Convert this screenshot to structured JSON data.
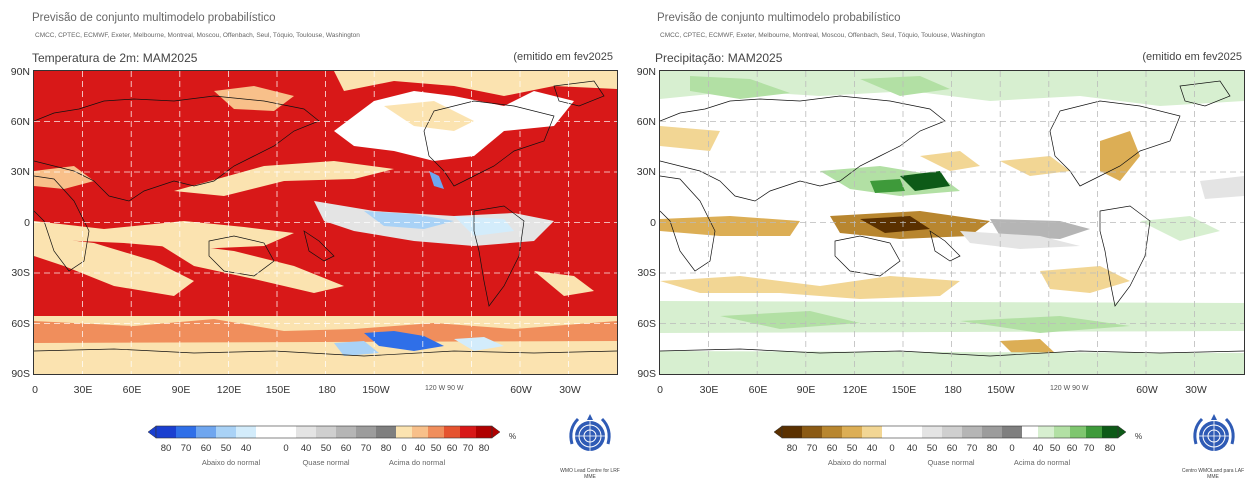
{
  "panels": [
    {
      "suptitle": "Previsão de conjunto multimodelo probabilístico",
      "centers": "CMCC, CPTEC, ECMWF, Exeter, Melbourne, Montreal, Moscou, Offenbach, Seul, Tóquio, Toulouse, Washington",
      "forecast_title": "Temperatura de 2m: MAM2025",
      "issued": "(emitido em fev2025",
      "lat_labels": [
        "90N",
        "60N",
        "30N",
        "0",
        "30S",
        "60S",
        "90S"
      ],
      "lon_labels": [
        "0",
        "30E",
        "60E",
        "90E",
        "120E",
        "150E",
        "180",
        "150W",
        "60W",
        "30W"
      ],
      "lon_inset": "120 W 90 W",
      "legend_ticks": [
        "80",
        "70",
        "60",
        "50",
        "40",
        "",
        "0",
        "40",
        "50",
        "60",
        "70",
        "80",
        "0",
        "40",
        "50",
        "60",
        "70",
        "80"
      ],
      "legend_unit": "%",
      "categories": [
        "Abaixo do normal",
        "Quase normal",
        "Acima do normal"
      ],
      "logo_text": "WMO Lead Centre for LRF MME",
      "colors": {
        "below": [
          "#1a3fd0",
          "#2f6fe8",
          "#6fa6ef",
          "#a9d2f6",
          "#d3ecfb",
          "#ffffff"
        ],
        "near": [
          "#ffffff",
          "#e4e4e4",
          "#cfcfcf",
          "#b5b5b5",
          "#9c9c9c",
          "#7f7f7f"
        ],
        "above": [
          "#fbe3b0",
          "#f8c08a",
          "#f08e5c",
          "#e5532f",
          "#d81818",
          "#b00000"
        ]
      }
    },
    {
      "suptitle": "Previsão de conjunto multimodelo probabilístico",
      "centers": "CMCC, CPTEC, ECMWF, Exeter, Melbourne, Montreal, Moscou, Offenbach, Seul, Tóquio, Toulouse, Washington",
      "forecast_title": "Precipitação: MAM2025",
      "issued": "(emitido em fev2025",
      "lat_labels": [
        "90N",
        "60N",
        "30N",
        "0",
        "30S",
        "60S",
        "90S"
      ],
      "lon_labels": [
        "0",
        "30E",
        "60E",
        "90E",
        "120E",
        "150E",
        "180",
        "150W",
        "60W",
        "30W"
      ],
      "lon_inset": "120 W 90 W",
      "legend_ticks": [
        "80",
        "70",
        "60",
        "50",
        "40",
        "0",
        "40",
        "50",
        "60",
        "70",
        "80",
        "0",
        "40",
        "50",
        "60",
        "70",
        "80"
      ],
      "legend_unit": "%",
      "categories": [
        "Abaixo do normal",
        "Quase normal",
        "Acima do normal"
      ],
      "logo_text": "Centro WMOLand para LAF MME",
      "colors": {
        "below": [
          "#5a3000",
          "#8b5a14",
          "#b8862f",
          "#dcae55",
          "#f2d694",
          "#ffffff"
        ],
        "near": [
          "#ffffff",
          "#e4e4e4",
          "#cfcfcf",
          "#b5b5b5",
          "#9c9c9c",
          "#7f7f7f"
        ],
        "above": [
          "#ffffff",
          "#d7efd0",
          "#b2e0a4",
          "#7fc66f",
          "#3e9a3a",
          "#0d5a17"
        ]
      }
    }
  ]
}
